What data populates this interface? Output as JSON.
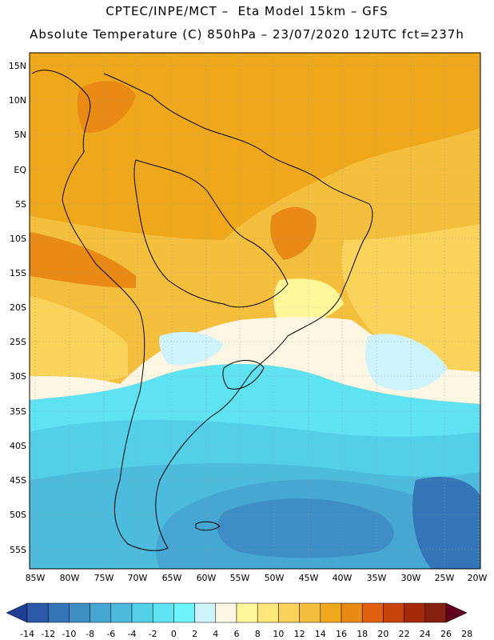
{
  "header": {
    "line1": "CPTEC/INPE/MCT –  Eta Model 15km – GFS",
    "line2": "Absolute Temperature (C) 850hPa – 23/07/2020 12UTC fct=237h"
  },
  "axes": {
    "lat_labels": [
      "15N",
      "10N",
      "5N",
      "EQ",
      "5S",
      "10S",
      "15S",
      "20S",
      "25S",
      "30S",
      "35S",
      "40S",
      "45S",
      "50S",
      "55S"
    ],
    "lon_labels": [
      "85W",
      "80W",
      "75W",
      "70W",
      "65W",
      "60W",
      "55W",
      "50W",
      "45W",
      "40W",
      "35W",
      "30W",
      "25W",
      "20W"
    ]
  },
  "colorbar": {
    "labels": [
      "-14",
      "-12",
      "-10",
      "-8",
      "-6",
      "-4",
      "-2",
      "0",
      "2",
      "4",
      "6",
      "8",
      "10",
      "12",
      "14",
      "16",
      "18",
      "20",
      "22",
      "24",
      "26",
      "28"
    ],
    "colors": [
      "#1f3f94",
      "#2a5aa8",
      "#3475b8",
      "#3e8ec6",
      "#46a7d2",
      "#4cbbdc",
      "#54cfe8",
      "#5fe2f2",
      "#6cf5fb",
      "#cdf3fb",
      "#fdf6e2",
      "#fff79a",
      "#fde77a",
      "#fad35a",
      "#f4bf3c",
      "#efa71c",
      "#e88a14",
      "#e06010",
      "#c8420c",
      "#a52a0a",
      "#852010",
      "#60001e"
    ]
  }
}
